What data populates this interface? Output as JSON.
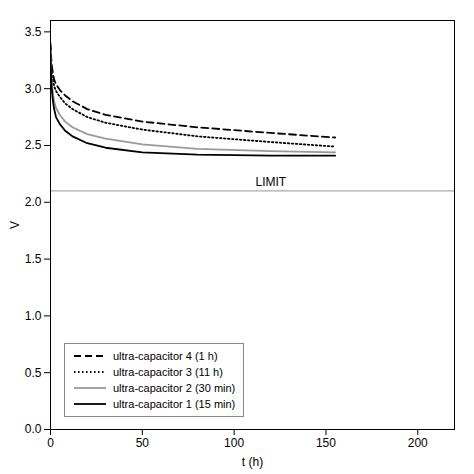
{
  "chart_data": {
    "type": "line",
    "xlabel": "t (h)",
    "ylabel": "V",
    "xlim": [
      0,
      220
    ],
    "ylim": [
      0,
      3.6
    ],
    "xticks": [
      0,
      50,
      100,
      150,
      200
    ],
    "yticks": [
      {
        "value": 0.0,
        "label": "0.0"
      },
      0.5,
      {
        "value": 1.0,
        "label": "1.0"
      },
      1.5,
      {
        "value": 2.0,
        "label": "2.0"
      },
      2.5,
      {
        "value": 3.0,
        "label": "3.0"
      },
      3.5
    ],
    "grid": false,
    "legend": "lower left",
    "x": [
      0,
      0.3,
      0.6,
      1,
      1.5,
      2,
      3,
      5,
      8,
      12,
      20,
      30,
      50,
      80,
      120,
      155
    ],
    "series": [
      {
        "name": "ultra-capacitor 4 (1 h)",
        "color": "#000000",
        "line_style": "dashed",
        "values": [
          3.4,
          3.3,
          3.22,
          3.17,
          3.12,
          3.08,
          3.04,
          2.99,
          2.94,
          2.89,
          2.82,
          2.77,
          2.71,
          2.66,
          2.61,
          2.57
        ]
      },
      {
        "name": "ultra-capacitor 3 (11 h)",
        "color": "#000000",
        "line_style": "dotted",
        "values": [
          3.36,
          3.25,
          3.17,
          3.11,
          3.06,
          3.02,
          2.98,
          2.93,
          2.87,
          2.82,
          2.75,
          2.7,
          2.64,
          2.58,
          2.53,
          2.49
        ]
      },
      {
        "name": "ultra-capacitor 2 (30 min)",
        "color": "#999999",
        "line_style": "solid",
        "values": [
          3.33,
          3.18,
          3.08,
          3.0,
          2.94,
          2.89,
          2.83,
          2.77,
          2.71,
          2.66,
          2.6,
          2.56,
          2.51,
          2.47,
          2.45,
          2.44
        ]
      },
      {
        "name": "ultra-capacitor 1 (15 min)",
        "color": "#000000",
        "line_style": "solid",
        "values": [
          3.3,
          3.13,
          3.02,
          2.94,
          2.87,
          2.82,
          2.75,
          2.69,
          2.63,
          2.58,
          2.52,
          2.48,
          2.44,
          2.42,
          2.41,
          2.41
        ]
      }
    ],
    "limit": {
      "y": 2.1,
      "label": "LIMIT",
      "label_x": 120,
      "color": "#aaaaaa"
    }
  }
}
